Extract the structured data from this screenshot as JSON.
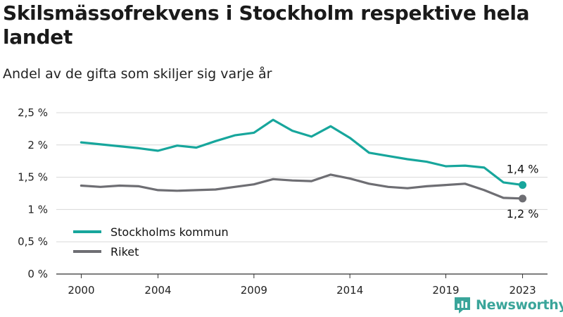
{
  "header": {
    "title": "Skilsmässofrekvens i Stockholm respektive hela landet",
    "subtitle": "Andel av de gifta som skiljer sig varje år"
  },
  "logo": {
    "text": "Newsworthy",
    "icon": "newsworthy-chart-icon",
    "color": "#3aa59a"
  },
  "chart_data": {
    "type": "line",
    "title": "Skilsmässofrekvens i Stockholm respektive hela landet",
    "subtitle": "Andel av de gifta som skiljer sig varje år",
    "x": [
      2000,
      2001,
      2002,
      2003,
      2004,
      2005,
      2006,
      2007,
      2008,
      2009,
      2010,
      2011,
      2012,
      2013,
      2014,
      2015,
      2016,
      2017,
      2018,
      2019,
      2020,
      2021,
      2022,
      2023
    ],
    "xlim": [
      1998.7,
      2024.3
    ],
    "ylim": [
      0,
      2.5
    ],
    "x_ticks": [
      2000,
      2004,
      2009,
      2014,
      2019,
      2023
    ],
    "y_ticks": [
      0,
      0.5,
      1,
      1.5,
      2,
      2.5
    ],
    "y_tick_labels": [
      "0 %",
      "0,5 %",
      "1 %",
      "1,5 %",
      "2 %",
      "2,5 %"
    ],
    "grid": true,
    "legend_position": "bottom-left",
    "series": [
      {
        "name": "Stockholms kommun",
        "color": "#17a69c",
        "values": [
          2.04,
          2.01,
          1.98,
          1.95,
          1.91,
          1.99,
          1.96,
          2.06,
          2.15,
          2.19,
          2.39,
          2.22,
          2.13,
          2.29,
          2.11,
          1.88,
          1.83,
          1.78,
          1.74,
          1.67,
          1.68,
          1.65,
          1.42,
          1.38
        ],
        "end_label": "1,4 %"
      },
      {
        "name": "Riket",
        "color": "#6e6e73",
        "values": [
          1.37,
          1.35,
          1.37,
          1.36,
          1.3,
          1.29,
          1.3,
          1.31,
          1.35,
          1.39,
          1.47,
          1.45,
          1.44,
          1.54,
          1.48,
          1.4,
          1.35,
          1.33,
          1.36,
          1.38,
          1.4,
          1.3,
          1.18,
          1.17
        ],
        "end_label": "1,2 %"
      }
    ]
  }
}
